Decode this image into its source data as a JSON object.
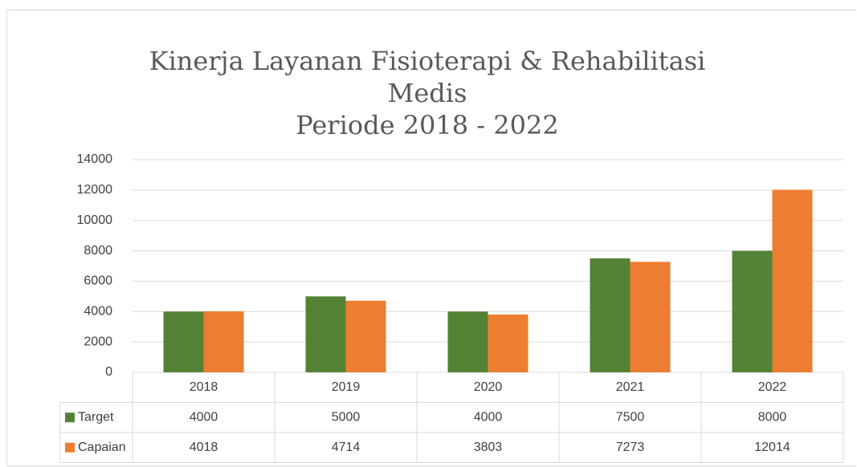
{
  "chart_data": {
    "type": "bar",
    "title": "Kinerja Layanan Fisioterapi & Rehabilitasi Medis",
    "subtitle": "Periode 2018 - 2022",
    "categories": [
      "2018",
      "2019",
      "2020",
      "2021",
      "2022"
    ],
    "series": [
      {
        "name": "Target",
        "color": "#548235",
        "values": [
          4000,
          5000,
          4000,
          7500,
          8000
        ]
      },
      {
        "name": "Capaian",
        "color": "#ed7d31",
        "values": [
          4018,
          4714,
          3803,
          7273,
          12014
        ]
      }
    ],
    "ylim": [
      0,
      14000
    ],
    "yticks": [
      0,
      2000,
      4000,
      6000,
      8000,
      10000,
      12000,
      14000
    ],
    "grid": true,
    "data_table": true
  }
}
